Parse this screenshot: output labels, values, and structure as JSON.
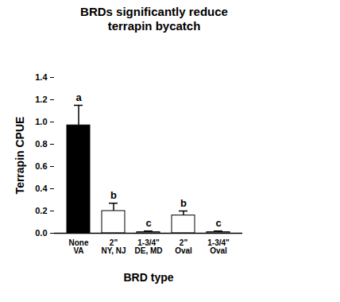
{
  "chart_data": {
    "type": "bar",
    "title": "BRDs significantly reduce terrapin bycatch",
    "x_label": "BRD type",
    "y_label": "Terrapin CPUE",
    "categories": [
      "None\nVA",
      "2\"\nNY, NJ",
      "1-3/4\"\nDE, MD",
      "2\"\nOval",
      "1-3/4\"\nOval"
    ],
    "values": [
      0.97,
      0.2,
      0.01,
      0.16,
      0.01
    ],
    "errors": [
      0.18,
      0.07,
      0.01,
      0.04,
      0.01
    ],
    "significance_letters": [
      "a",
      "b",
      "c",
      "b",
      "c"
    ],
    "colors": [
      "#000000",
      "#ffffff",
      "#ffffff",
      "#ffffff",
      "#ffffff"
    ],
    "ylim": [
      0,
      1.4
    ],
    "yticks": [
      {
        "value": 0,
        "label": "0.0"
      },
      0.2,
      0.4,
      0.6,
      0.8,
      {
        "value": 1,
        "label": "1.0"
      },
      1.2,
      1.4
    ],
    "grid": false
  }
}
